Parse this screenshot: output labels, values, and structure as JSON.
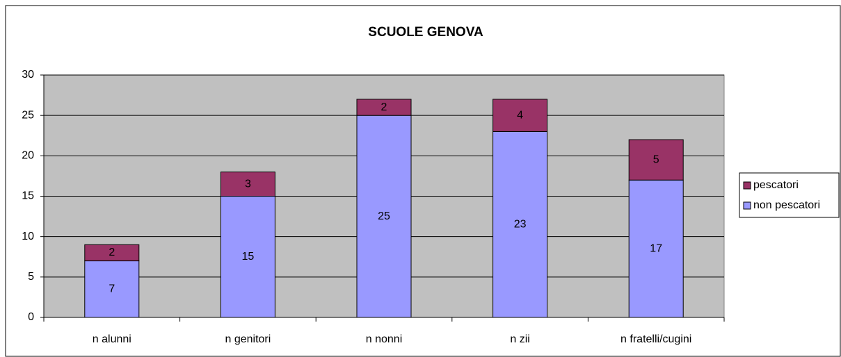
{
  "chart_data": {
    "type": "stacked_bar",
    "title": "SCUOLE GENOVA",
    "categories": [
      "n alunni",
      "n genitori",
      "n nonni",
      "n zii",
      "n fratelli/cugini"
    ],
    "series": [
      {
        "name": "non pescatori",
        "color": "#9999ff",
        "values": [
          7,
          15,
          25,
          23,
          17
        ]
      },
      {
        "name": "pescatori",
        "color": "#993366",
        "values": [
          2,
          3,
          2,
          4,
          5
        ]
      }
    ],
    "ylim": [
      0,
      30
    ],
    "yticks": [
      0,
      5,
      10,
      15,
      20,
      25,
      30
    ],
    "grid": true,
    "legend": "right"
  }
}
